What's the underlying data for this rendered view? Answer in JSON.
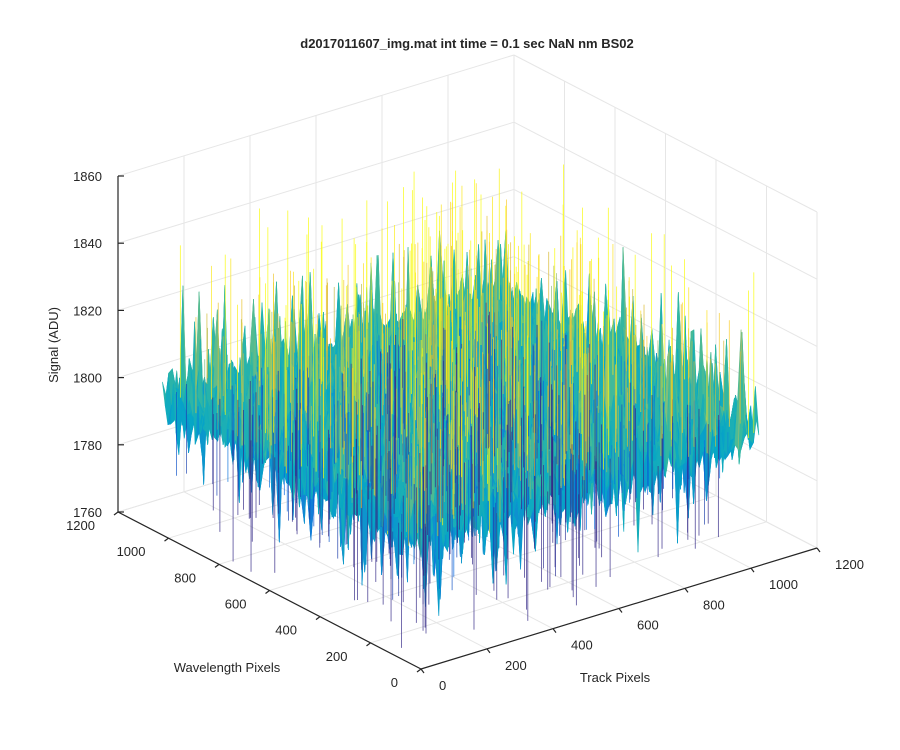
{
  "chart_data": {
    "type": "surface3d",
    "title": "d2017011607_img.mat int time = 0.1 sec  NaN nm BS02",
    "xlabel": "Track Pixels",
    "ylabel": "Wavelength Pixels",
    "zlabel": "Signal (ADU)",
    "xlim": [
      0,
      1200
    ],
    "ylim": [
      0,
      1200
    ],
    "zlim": [
      1760,
      1860
    ],
    "xticks": [
      "0",
      "200",
      "400",
      "600",
      "800",
      "1000",
      "1200"
    ],
    "yticks": [
      "0",
      "200",
      "400",
      "600",
      "800",
      "1000",
      "1200"
    ],
    "zticks": [
      "1760",
      "1780",
      "1800",
      "1820",
      "1840",
      "1860"
    ],
    "grid": true,
    "colormap": "parula",
    "surface": {
      "x_extent": [
        0,
        1024
      ],
      "y_extent": [
        0,
        1024
      ],
      "mean_signal": 1800,
      "min_signal": 1760,
      "max_signal": 1850
    }
  }
}
